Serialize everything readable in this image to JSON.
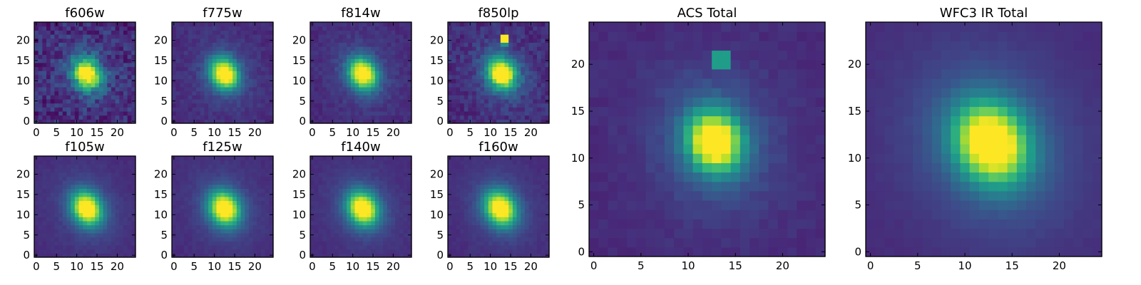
{
  "chart_data": [
    {
      "type": "heatmap",
      "title": "f606w",
      "grid": 24,
      "center": [
        12.5,
        11.8
      ],
      "sigma": [
        2.3,
        2.8
      ],
      "angle_deg": -30,
      "halo": 0.1,
      "noise": 0.22,
      "xlim": [
        0,
        24
      ],
      "ylim": [
        0,
        24
      ],
      "xticks": [
        "0",
        "5",
        "10",
        "15",
        "20"
      ],
      "yticks": [
        "0",
        "5",
        "10",
        "15",
        "20"
      ],
      "colormap": "viridis",
      "hotspots": []
    },
    {
      "type": "heatmap",
      "title": "f775w",
      "grid": 24,
      "center": [
        12.5,
        11.8
      ],
      "sigma": [
        2.3,
        2.8
      ],
      "angle_deg": -30,
      "halo": 0.12,
      "noise": 0.08,
      "xlim": [
        0,
        24
      ],
      "ylim": [
        0,
        24
      ],
      "xticks": [
        "0",
        "5",
        "10",
        "15",
        "20"
      ],
      "yticks": [
        "0",
        "5",
        "10",
        "15",
        "20"
      ],
      "colormap": "viridis",
      "hotspots": []
    },
    {
      "type": "heatmap",
      "title": "f814w",
      "grid": 24,
      "center": [
        12.5,
        11.8
      ],
      "sigma": [
        2.3,
        2.8
      ],
      "angle_deg": -30,
      "halo": 0.12,
      "noise": 0.08,
      "xlim": [
        0,
        24
      ],
      "ylim": [
        0,
        24
      ],
      "xticks": [
        "0",
        "5",
        "10",
        "15",
        "20"
      ],
      "yticks": [
        "0",
        "5",
        "10",
        "15",
        "20"
      ],
      "colormap": "viridis",
      "hotspots": []
    },
    {
      "type": "heatmap",
      "title": "f850lp",
      "grid": 24,
      "center": [
        12.8,
        11.8
      ],
      "sigma": [
        2.4,
        2.9
      ],
      "angle_deg": -30,
      "halo": 0.12,
      "noise": 0.14,
      "xlim": [
        0,
        24
      ],
      "ylim": [
        0,
        24
      ],
      "xticks": [
        "0",
        "5",
        "10",
        "15",
        "20"
      ],
      "yticks": [
        "0",
        "5",
        "10",
        "15",
        "20"
      ],
      "colormap": "viridis",
      "hotspots": [
        {
          "x": 13.5,
          "y": 20.5,
          "v": 1.0
        },
        {
          "x": 13.5,
          "y": 19.5,
          "v": 0.5
        }
      ]
    },
    {
      "type": "heatmap",
      "title": "f105w",
      "grid": 24,
      "center": [
        12.5,
        11.6
      ],
      "sigma": [
        2.4,
        3.0
      ],
      "angle_deg": -30,
      "halo": 0.14,
      "noise": 0.04,
      "xlim": [
        0,
        24
      ],
      "ylim": [
        0,
        24
      ],
      "xticks": [
        "0",
        "5",
        "10",
        "15",
        "20"
      ],
      "yticks": [
        "0",
        "5",
        "10",
        "15",
        "20"
      ],
      "colormap": "viridis",
      "hotspots": []
    },
    {
      "type": "heatmap",
      "title": "f125w",
      "grid": 24,
      "center": [
        12.5,
        11.6
      ],
      "sigma": [
        2.5,
        3.0
      ],
      "angle_deg": -30,
      "halo": 0.14,
      "noise": 0.04,
      "xlim": [
        0,
        24
      ],
      "ylim": [
        0,
        24
      ],
      "xticks": [
        "0",
        "5",
        "10",
        "15",
        "20"
      ],
      "yticks": [
        "0",
        "5",
        "10",
        "15",
        "20"
      ],
      "colormap": "viridis",
      "hotspots": []
    },
    {
      "type": "heatmap",
      "title": "f140w",
      "grid": 24,
      "center": [
        12.5,
        11.6
      ],
      "sigma": [
        2.5,
        3.0
      ],
      "angle_deg": -30,
      "halo": 0.14,
      "noise": 0.04,
      "xlim": [
        0,
        24
      ],
      "ylim": [
        0,
        24
      ],
      "xticks": [
        "0",
        "5",
        "10",
        "15",
        "20"
      ],
      "yticks": [
        "0",
        "5",
        "10",
        "15",
        "20"
      ],
      "colormap": "viridis",
      "hotspots": []
    },
    {
      "type": "heatmap",
      "title": "f160w",
      "grid": 24,
      "center": [
        12.5,
        11.6
      ],
      "sigma": [
        2.5,
        3.1
      ],
      "angle_deg": -30,
      "halo": 0.14,
      "noise": 0.04,
      "xlim": [
        0,
        24
      ],
      "ylim": [
        0,
        24
      ],
      "xticks": [
        "0",
        "5",
        "10",
        "15",
        "20"
      ],
      "yticks": [
        "0",
        "5",
        "10",
        "15",
        "20"
      ],
      "colormap": "viridis",
      "hotspots": []
    },
    {
      "type": "heatmap",
      "title": "ACS Total",
      "grid": 24,
      "center": [
        12.8,
        11.8
      ],
      "sigma": [
        1.9,
        2.2
      ],
      "angle_deg": -20,
      "halo": 0.22,
      "noise": 0.05,
      "xlim": [
        0,
        24
      ],
      "ylim": [
        0,
        24
      ],
      "xticks": [
        "0",
        "5",
        "10",
        "15",
        "20"
      ],
      "yticks": [
        "0",
        "5",
        "10",
        "15",
        "20"
      ],
      "colormap": "viridis",
      "hotspots": [
        {
          "x": 13.5,
          "y": 20.5,
          "v": 0.55
        }
      ]
    },
    {
      "type": "heatmap",
      "title": "WFC3 IR Total",
      "grid": 24,
      "center": [
        12.8,
        11.6
      ],
      "sigma": [
        2.5,
        3.0
      ],
      "angle_deg": -30,
      "halo": 0.22,
      "noise": 0.02,
      "xlim": [
        0,
        24
      ],
      "ylim": [
        0,
        24
      ],
      "xticks": [
        "0",
        "5",
        "10",
        "15",
        "20"
      ],
      "yticks": [
        "0",
        "5",
        "10",
        "15",
        "20"
      ],
      "colormap": "viridis",
      "hotspots": []
    }
  ],
  "colors": {
    "viridis": [
      "#440154",
      "#482878",
      "#3e4989",
      "#31688e",
      "#26828e",
      "#1f9e89",
      "#35b779",
      "#6ece58",
      "#b5de2b",
      "#fde725"
    ]
  }
}
